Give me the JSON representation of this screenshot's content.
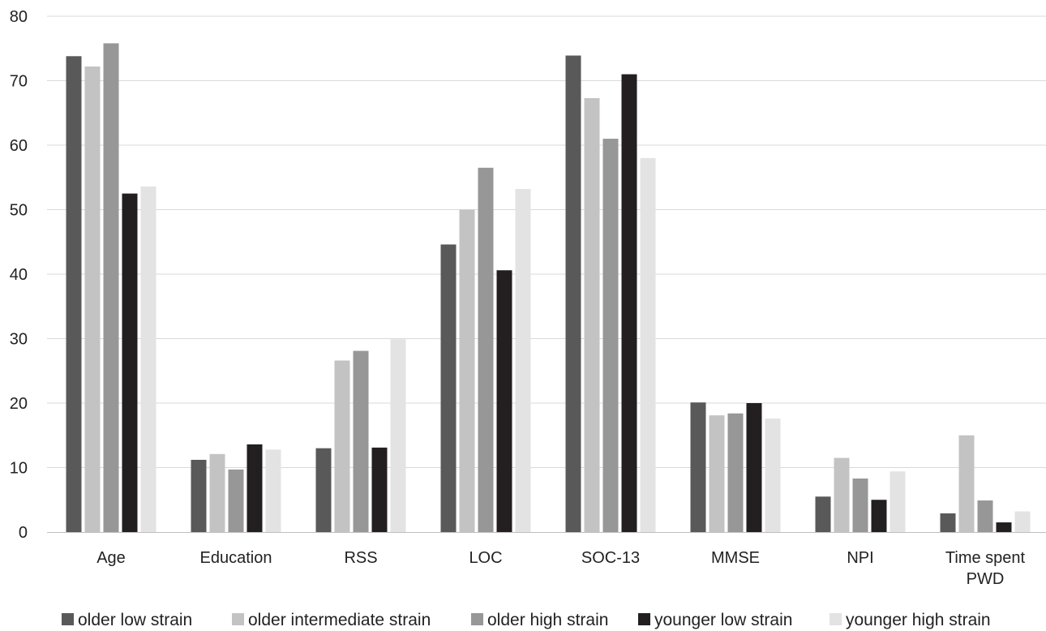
{
  "chart_data": {
    "type": "bar",
    "categories": [
      [
        "Age"
      ],
      [
        "Education"
      ],
      [
        "RSS"
      ],
      [
        "LOC"
      ],
      [
        "SOC-13"
      ],
      [
        "MMSE"
      ],
      [
        "NPI"
      ],
      [
        "Time spent",
        "PWD"
      ]
    ],
    "series": [
      {
        "name": "older low strain",
        "color": "#595959",
        "values": [
          73.8,
          11.2,
          13.0,
          44.6,
          73.9,
          20.1,
          5.5,
          2.9
        ]
      },
      {
        "name": "older intermediate strain",
        "color": "#c3c3c3",
        "values": [
          72.2,
          12.1,
          26.6,
          50.0,
          67.3,
          18.1,
          11.5,
          15.0
        ]
      },
      {
        "name": "older high strain",
        "color": "#979797",
        "values": [
          75.8,
          9.7,
          28.1,
          56.5,
          61.0,
          18.4,
          8.3,
          4.9
        ]
      },
      {
        "name": "younger low strain",
        "color": "#231f20",
        "values": [
          52.5,
          13.6,
          13.1,
          40.6,
          71.0,
          20.0,
          5.0,
          1.5
        ]
      },
      {
        "name": "younger high strain",
        "color": "#e3e3e4",
        "values": [
          53.6,
          12.8,
          29.9,
          53.2,
          58.0,
          17.6,
          9.4,
          3.2
        ]
      }
    ],
    "ylim": [
      0,
      80
    ],
    "yticks": [
      "0",
      "10",
      "20",
      "30",
      "40",
      "50",
      "60",
      "70",
      "80"
    ],
    "grid": true,
    "legend_position": "bottom",
    "title": "",
    "xlabel": "",
    "ylabel": ""
  }
}
